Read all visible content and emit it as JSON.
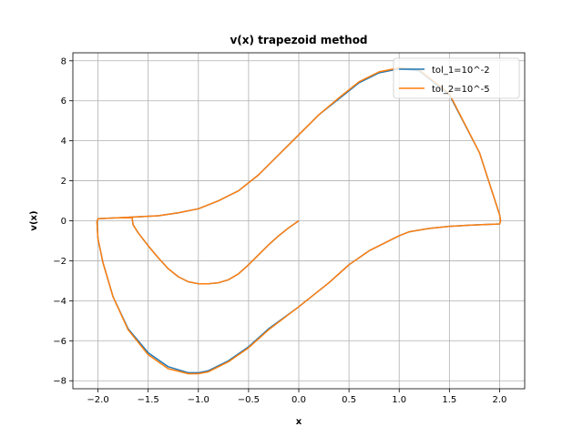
{
  "chart_data": {
    "type": "line",
    "title": "v(x) trapezoid method",
    "xlabel": "x",
    "ylabel": "v(x)",
    "xlim": [
      -2.25,
      2.25
    ],
    "ylim": [
      -8.4,
      8.4
    ],
    "xticks": [
      -2.0,
      -1.5,
      -1.0,
      -0.5,
      0.0,
      0.5,
      1.0,
      1.5,
      2.0
    ],
    "xtick_labels": [
      "−2.0",
      "−1.5",
      "−1.0",
      "−0.5",
      "0.0",
      "0.5",
      "1.0",
      "1.5",
      "2.0"
    ],
    "yticks": [
      -8,
      -6,
      -4,
      -2,
      0,
      2,
      4,
      6,
      8
    ],
    "ytick_labels": [
      "−8",
      "−6",
      "−4",
      "−2",
      "0",
      "2",
      "4",
      "6",
      "8"
    ],
    "grid": true,
    "legend_position": "top-right",
    "series": [
      {
        "name": "tol_1=10^-2",
        "color": "#1f77b4",
        "x": [
          0.0,
          -0.1,
          -0.2,
          -0.3,
          -0.4,
          -0.5,
          -0.6,
          -0.7,
          -0.8,
          -0.9,
          -1.0,
          -1.1,
          -1.2,
          -1.3,
          -1.4,
          -1.5,
          -1.6,
          -1.65,
          -1.66,
          -1.8,
          -2.0,
          -2.01,
          -2.0,
          -1.95,
          -1.85,
          -1.7,
          -1.5,
          -1.3,
          -1.1,
          -1.0,
          -0.9,
          -0.7,
          -0.5,
          -0.3,
          0.0,
          0.3,
          0.5,
          0.7,
          0.9,
          1.0,
          1.1,
          1.3,
          1.5,
          1.7,
          1.85,
          1.95,
          2.0,
          2.01,
          2.0,
          1.8,
          1.5,
          1.2,
          1.0,
          0.8,
          0.6,
          0.4,
          0.2,
          0.0,
          -0.2,
          -0.4,
          -0.6,
          -0.8,
          -1.0,
          -1.2,
          -1.4,
          -1.6,
          -1.8,
          -2.0
        ],
        "y": [
          0.0,
          -0.35,
          -0.75,
          -1.2,
          -1.7,
          -2.2,
          -2.65,
          -2.95,
          -3.1,
          -3.15,
          -3.15,
          -3.05,
          -2.8,
          -2.4,
          -1.85,
          -1.25,
          -0.6,
          -0.2,
          0.15,
          0.15,
          0.1,
          -0.05,
          -0.9,
          -2.1,
          -3.8,
          -5.4,
          -6.6,
          -7.3,
          -7.6,
          -7.6,
          -7.5,
          -7.0,
          -6.3,
          -5.4,
          -4.3,
          -3.1,
          -2.2,
          -1.5,
          -1.0,
          -0.75,
          -0.55,
          -0.38,
          -0.28,
          -0.22,
          -0.19,
          -0.17,
          -0.16,
          0.0,
          0.3,
          3.4,
          6.3,
          7.5,
          7.6,
          7.4,
          6.9,
          6.1,
          5.3,
          4.3,
          3.3,
          2.3,
          1.5,
          1.0,
          0.6,
          0.4,
          0.25,
          0.2,
          0.15,
          0.1
        ]
      },
      {
        "name": "tol_2=10^-5",
        "color": "#ff7f0e",
        "x": [
          0.0,
          -0.1,
          -0.2,
          -0.3,
          -0.4,
          -0.5,
          -0.6,
          -0.7,
          -0.8,
          -0.9,
          -1.0,
          -1.1,
          -1.2,
          -1.3,
          -1.4,
          -1.5,
          -1.6,
          -1.65,
          -1.66,
          -1.8,
          -2.0,
          -2.01,
          -2.0,
          -1.95,
          -1.85,
          -1.7,
          -1.5,
          -1.3,
          -1.1,
          -1.0,
          -0.9,
          -0.7,
          -0.5,
          -0.3,
          0.0,
          0.3,
          0.5,
          0.7,
          0.9,
          1.0,
          1.1,
          1.3,
          1.5,
          1.7,
          1.85,
          1.95,
          2.0,
          2.01,
          2.0,
          1.8,
          1.5,
          1.2,
          1.0,
          0.8,
          0.6,
          0.4,
          0.2,
          0.0,
          -0.2,
          -0.4,
          -0.6,
          -0.8,
          -1.0,
          -1.2,
          -1.4,
          -1.6,
          -1.8,
          -2.0
        ],
        "y": [
          0.0,
          -0.35,
          -0.75,
          -1.2,
          -1.7,
          -2.2,
          -2.65,
          -2.95,
          -3.1,
          -3.15,
          -3.15,
          -3.05,
          -2.8,
          -2.4,
          -1.85,
          -1.25,
          -0.6,
          -0.2,
          0.15,
          0.15,
          0.1,
          -0.05,
          -0.9,
          -2.1,
          -3.8,
          -5.45,
          -6.7,
          -7.4,
          -7.65,
          -7.65,
          -7.55,
          -7.05,
          -6.35,
          -5.45,
          -4.3,
          -3.1,
          -2.2,
          -1.5,
          -1.0,
          -0.75,
          -0.55,
          -0.38,
          -0.28,
          -0.22,
          -0.19,
          -0.17,
          -0.16,
          0.0,
          0.3,
          3.4,
          6.35,
          7.55,
          7.65,
          7.45,
          6.95,
          6.15,
          5.3,
          4.3,
          3.3,
          2.3,
          1.5,
          1.0,
          0.6,
          0.4,
          0.25,
          0.2,
          0.15,
          0.1
        ]
      }
    ]
  }
}
